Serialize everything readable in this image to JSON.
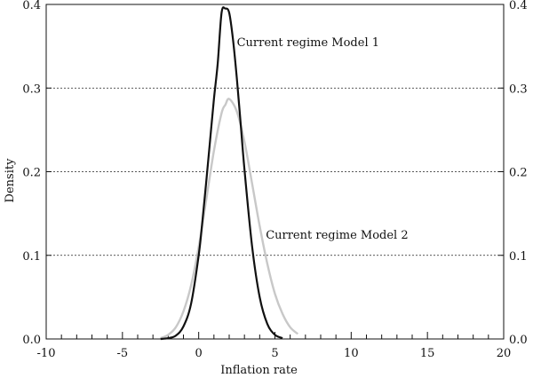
{
  "chart_data": {
    "type": "line",
    "title": "",
    "xlabel": "Inflation rate",
    "ylabel": "Density",
    "xlim": [
      -10,
      20
    ],
    "ylim": [
      0,
      0.4
    ],
    "x_ticks": [
      -10,
      -5,
      0,
      5,
      10,
      15,
      20
    ],
    "y_ticks": [
      0.0,
      0.1,
      0.2,
      0.3,
      0.4
    ],
    "y_tick_labels": [
      "0.0",
      "0.1",
      "0.2",
      "0.3",
      "0.4"
    ],
    "x_tick_labels": [
      "-10",
      "-5",
      "0",
      "5",
      "10",
      "15",
      "20"
    ],
    "gridlines": [
      0.1,
      0.2,
      0.3
    ],
    "grid": "horizontal dotted",
    "secondary_y_axis": true,
    "series": [
      {
        "name": "Current regime Model 1",
        "color": "#111111",
        "x": [
          -2.5,
          -2.0,
          -1.5,
          -1.0,
          -0.5,
          0.0,
          0.25,
          0.5,
          0.75,
          1.0,
          1.25,
          1.5,
          1.75,
          2.0,
          2.25,
          2.5,
          2.75,
          3.0,
          3.5,
          4.0,
          4.5,
          5.0,
          5.5
        ],
        "y": [
          0.0,
          0.001,
          0.004,
          0.015,
          0.042,
          0.1,
          0.142,
          0.189,
          0.238,
          0.287,
          0.33,
          0.39,
          0.395,
          0.39,
          0.358,
          0.312,
          0.258,
          0.203,
          0.111,
          0.05,
          0.018,
          0.005,
          0.001
        ]
      },
      {
        "name": "Current regime Model 2",
        "color": "#c8c8c8",
        "x": [
          -2.5,
          -2.0,
          -1.5,
          -1.0,
          -0.5,
          0.0,
          0.5,
          1.0,
          1.5,
          1.75,
          2.0,
          2.5,
          3.0,
          3.5,
          4.0,
          4.5,
          5.0,
          5.5,
          6.0,
          6.5
        ],
        "y": [
          0.001,
          0.005,
          0.014,
          0.033,
          0.064,
          0.11,
          0.167,
          0.225,
          0.27,
          0.28,
          0.287,
          0.272,
          0.236,
          0.186,
          0.135,
          0.09,
          0.054,
          0.03,
          0.014,
          0.006
        ]
      }
    ],
    "annotations": [
      {
        "text": "Current regime Model 1",
        "x": 2.5,
        "y": 0.35
      },
      {
        "text": "Current regime Model 2",
        "x": 4.4,
        "y": 0.12
      }
    ]
  }
}
